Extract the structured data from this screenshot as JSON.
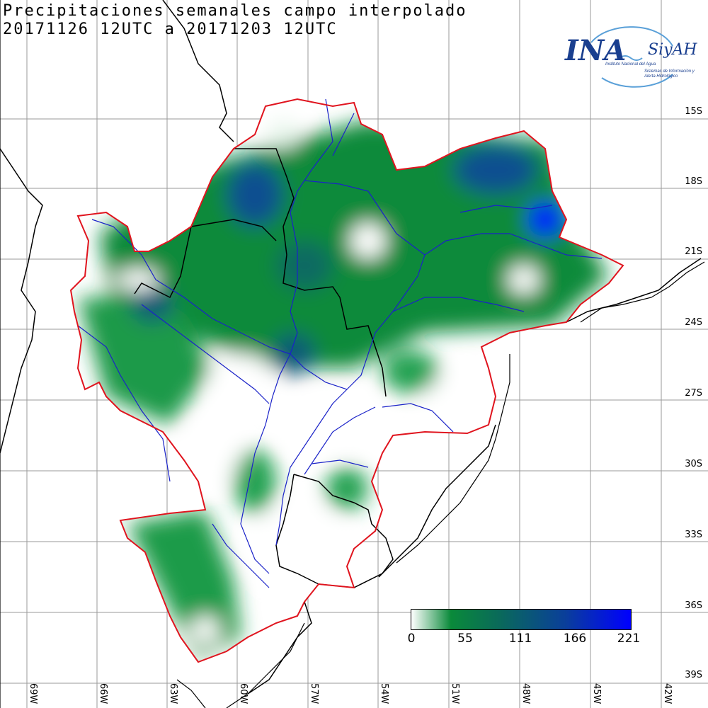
{
  "title": {
    "line1": "Precipitaciones semanales campo interpolado",
    "line2": "20171126 12UTC a 20171203 12UTC"
  },
  "logo": {
    "name": "INA",
    "system": "SiyAH",
    "institute": "Instituto Nacional del Agua",
    "system_full": "Sistemas de Información y Alerta Hidrológico"
  },
  "lat_labels": [
    "15S",
    "18S",
    "21S",
    "24S",
    "27S",
    "30S",
    "33S",
    "36S",
    "39S"
  ],
  "lon_labels": [
    "69W",
    "66W",
    "63W",
    "60W",
    "57W",
    "54W",
    "51W",
    "48W",
    "45W",
    "42W"
  ],
  "colorbar": {
    "ticks": [
      "0",
      "55",
      "111",
      "166",
      "221"
    ],
    "colors": [
      "#ffffff",
      "#0a8a3a",
      "#0a6a5a",
      "#0a3f9a",
      "#0000ff"
    ]
  },
  "map_colors": {
    "basin_outline": "#e0141e",
    "rivers": "#1a22c8",
    "borders": "#000000",
    "grid": "#9a9a9a"
  }
}
